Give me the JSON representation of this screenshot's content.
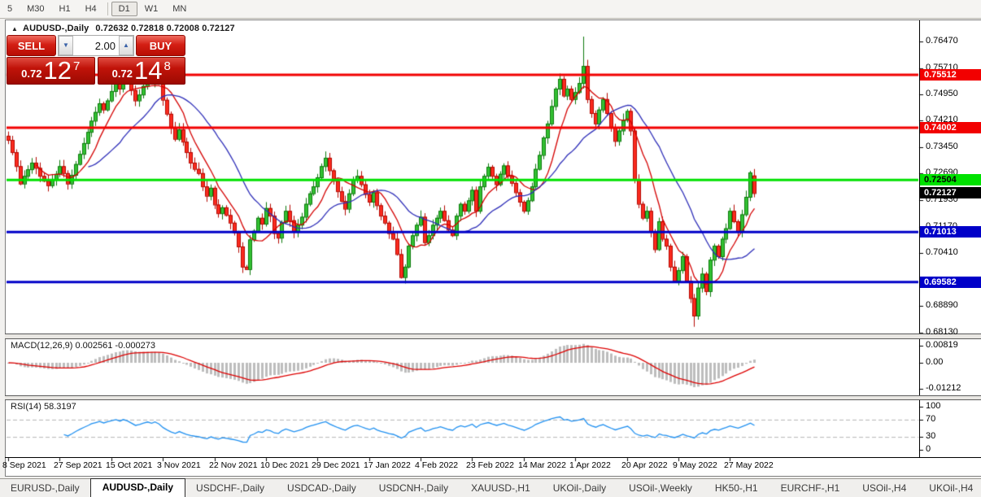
{
  "toolbar": {
    "timeframes": [
      {
        "label": "5",
        "active": false
      },
      {
        "label": "M30",
        "active": false
      },
      {
        "label": "H1",
        "active": false
      },
      {
        "label": "H4",
        "active": false
      },
      {
        "label": "D1",
        "active": true
      },
      {
        "label": "W1",
        "active": false
      },
      {
        "label": "MN",
        "active": false
      }
    ]
  },
  "chart_header": {
    "collapse_icon": "▲",
    "symbol": "AUDUSD-,Daily",
    "ohlc": "0.72632 0.72818 0.72008 0.72127"
  },
  "trade_panel": {
    "sell_label": "SELL",
    "buy_label": "BUY",
    "volume": "2.00",
    "spin_down_icon": "▼",
    "spin_up_icon": "▲",
    "sell": {
      "prefix": "0.72",
      "big": "12",
      "sup": "7"
    },
    "buy": {
      "prefix": "0.72",
      "big": "14",
      "sup": "8"
    }
  },
  "chart_data": {
    "type": "candlestick",
    "symbol": "AUDUSD-",
    "timeframe": "Daily",
    "last_bar": {
      "open": 0.72632,
      "high": 0.72818,
      "low": 0.72008,
      "close": 0.72127
    },
    "x_axis": {
      "tick_labels": [
        "8 Sep 2021",
        "27 Sep 2021",
        "15 Oct 2021",
        "3 Nov 2021",
        "22 Nov 2021",
        "10 Dec 2021",
        "29 Dec 2021",
        "17 Jan 2022",
        "4 Feb 2022",
        "23 Feb 2022",
        "14 Mar 2022",
        "1 Apr 2022",
        "20 Apr 2022",
        "9 May 2022",
        "27 May 2022"
      ],
      "bars_per_tick": 13
    },
    "y_axis": {
      "tick_labels": [
        "0.76470",
        "0.75710",
        "0.74950",
        "0.74210",
        "0.73450",
        "0.72690",
        "0.71930",
        "0.71170",
        "0.70410",
        "0.68890",
        "0.68130"
      ],
      "max": 0.7647,
      "min": 0.6813
    },
    "closes": [
      0.7365,
      0.733,
      0.729,
      0.724,
      0.7262,
      0.7281,
      0.73,
      0.7285,
      0.7262,
      0.7248,
      0.7235,
      0.7252,
      0.7268,
      0.729,
      0.727,
      0.724,
      0.7265,
      0.7296,
      0.7325,
      0.7356,
      0.7388,
      0.742,
      0.7445,
      0.747,
      0.7452,
      0.7478,
      0.7505,
      0.7528,
      0.7512,
      0.755,
      0.7535,
      0.7508,
      0.7478,
      0.7495,
      0.752,
      0.7545,
      0.753,
      0.7556,
      0.7532,
      0.748,
      0.744,
      0.74,
      0.7368,
      0.7395,
      0.736,
      0.733,
      0.73,
      0.7282,
      0.727,
      0.7232,
      0.7205,
      0.7228,
      0.718,
      0.7155,
      0.7172,
      0.715,
      0.7128,
      0.71,
      0.706,
      0.7002,
      0.6995,
      0.708,
      0.7105,
      0.7142,
      0.7125,
      0.717,
      0.7148,
      0.7098,
      0.7085,
      0.713,
      0.7162,
      0.7135,
      0.7102,
      0.7122,
      0.7145,
      0.7182,
      0.7212,
      0.7232,
      0.7258,
      0.729,
      0.7314,
      0.7278,
      0.7248,
      0.7218,
      0.719,
      0.7168,
      0.7212,
      0.7252,
      0.7262,
      0.7238,
      0.721,
      0.7188,
      0.7215,
      0.7178,
      0.7148,
      0.7128,
      0.7098,
      0.7082,
      0.7038,
      0.6972,
      0.7002,
      0.7062,
      0.7092,
      0.7122,
      0.7145,
      0.7072,
      0.7092,
      0.7122,
      0.7142,
      0.7162,
      0.7135,
      0.7108,
      0.7092,
      0.7148,
      0.7182,
      0.7162,
      0.7192,
      0.7222,
      0.7162,
      0.7232,
      0.7262,
      0.7288,
      0.7262,
      0.7238,
      0.7268,
      0.7292,
      0.7262,
      0.7242,
      0.7215,
      0.7188,
      0.7162,
      0.7192,
      0.7232,
      0.7282,
      0.7322,
      0.7372,
      0.7412,
      0.7462,
      0.7512,
      0.754,
      0.7492,
      0.7512,
      0.7482,
      0.7502,
      0.7528,
      0.7577,
      0.7482,
      0.7442,
      0.7412,
      0.7452,
      0.7482,
      0.7442,
      0.7402,
      0.7362,
      0.7392,
      0.7422,
      0.7448,
      0.7392,
      0.7252,
      0.7182,
      0.7142,
      0.7162,
      0.7102,
      0.7052,
      0.7132,
      0.7082,
      0.7062,
      0.7002,
      0.6962,
      0.6992,
      0.7032,
      0.6962,
      0.6912,
      0.6862,
      0.6942,
      0.6982,
      0.6932,
      0.7022,
      0.7062,
      0.7032,
      0.7082,
      0.7112,
      0.7162,
      0.7132,
      0.7102,
      0.7152,
      0.7202,
      0.7272,
      0.72127
    ],
    "spikes": {
      "29": {
        "high": 0.7556
      },
      "37": {
        "high": 0.7561
      },
      "60": {
        "low": 0.6993
      },
      "99": {
        "low": 0.6968
      },
      "145": {
        "high": 0.7661
      },
      "173": {
        "low": 0.683
      }
    },
    "h_lines": [
      {
        "price": 0.75512,
        "text": "0.75512",
        "color": "#f20000",
        "text_color": "#ffffff"
      },
      {
        "price": 0.74002,
        "text": "0.74002",
        "color": "#f20000",
        "text_color": "#ffffff"
      },
      {
        "price": 0.72504,
        "text": "0.72504",
        "color": "#00e200",
        "text_color": "#000000"
      },
      {
        "price": 0.71013,
        "text": "0.71013",
        "color": "#0000c8",
        "text_color": "#ffffff"
      },
      {
        "price": 0.69582,
        "text": "0.69582",
        "color": "#0000c8",
        "text_color": "#ffffff"
      }
    ],
    "current_price": {
      "price": 0.72127,
      "text": "0.72127",
      "bg": "#000000",
      "text_color": "#ffffff"
    },
    "moving_averages": [
      {
        "name": "ma-fast",
        "color": "#d40000",
        "period": 8
      },
      {
        "name": "ma-slow",
        "color": "#2e2eb8",
        "period": 21
      }
    ],
    "indicators": [
      {
        "name": "MACD",
        "params": [
          12,
          26,
          9
        ],
        "main_value": 0.002561,
        "signal_value": -0.000273
      },
      {
        "name": "RSI",
        "params": [
          14
        ],
        "value": 58.3197
      }
    ],
    "colors": {
      "bull": "#33c133",
      "bull_border": "#0c7a0c",
      "bear": "#fb2b1f",
      "bear_border": "#b40800",
      "macd_hist": "#bdbdbd",
      "macd_signal": "#dd0000",
      "rsi_line": "#2090f0",
      "rsi_levels": "#b5b5b5"
    }
  },
  "macd_panel": {
    "label": "MACD(12,26,9) 0.002561 -0.000273",
    "axis": [
      {
        "text": "0.00819",
        "value": 0.00819
      },
      {
        "text": "0.00",
        "value": 0
      },
      {
        "text": "-0.01212",
        "value": -0.01212
      }
    ],
    "levels_rsi": [
      70,
      30
    ]
  },
  "rsi_panel": {
    "label": "RSI(14) 58.3197",
    "axis": [
      {
        "text": "100",
        "value": 100
      },
      {
        "text": "70",
        "value": 70
      },
      {
        "text": "30",
        "value": 30
      },
      {
        "text": "0",
        "value": 0
      }
    ],
    "dashed_levels": [
      70,
      30
    ]
  },
  "tabs": {
    "items": [
      "EURUSD-,Daily",
      "AUDUSD-,Daily",
      "USDCHF-,Daily",
      "USDCAD-,Daily",
      "USDCNH-,Daily",
      "XAUUSD-,H1",
      "UKOil-,Daily",
      "USOil-,Weekly",
      "HK50-,H1",
      "EURCHF-,H1",
      "USOil-,H4",
      "UKOil-,H4"
    ],
    "active": "AUDUSD-,Daily",
    "scroll_left_icon": "◄",
    "scroll_right_icon": "►"
  }
}
